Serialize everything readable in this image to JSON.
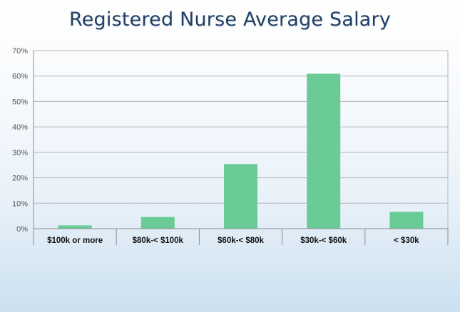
{
  "chart_data": {
    "type": "bar",
    "title": "Registered Nurse Average Salary",
    "categories": [
      "$100k or more",
      "$80k-< $100k",
      "$60k-< $80k",
      "$30k-< $60k",
      "< $30k"
    ],
    "values": [
      1.3,
      4.6,
      25.4,
      60.9,
      6.6
    ],
    "ylim": [
      0,
      70
    ],
    "yticks": [
      "0%",
      "10%",
      "20%",
      "30%",
      "40%",
      "50%",
      "60%",
      "70%"
    ],
    "grid": true,
    "colors": {
      "bar": "#6acb96",
      "grid": "#b5b5b5",
      "axis": "#8c8c8c"
    }
  }
}
